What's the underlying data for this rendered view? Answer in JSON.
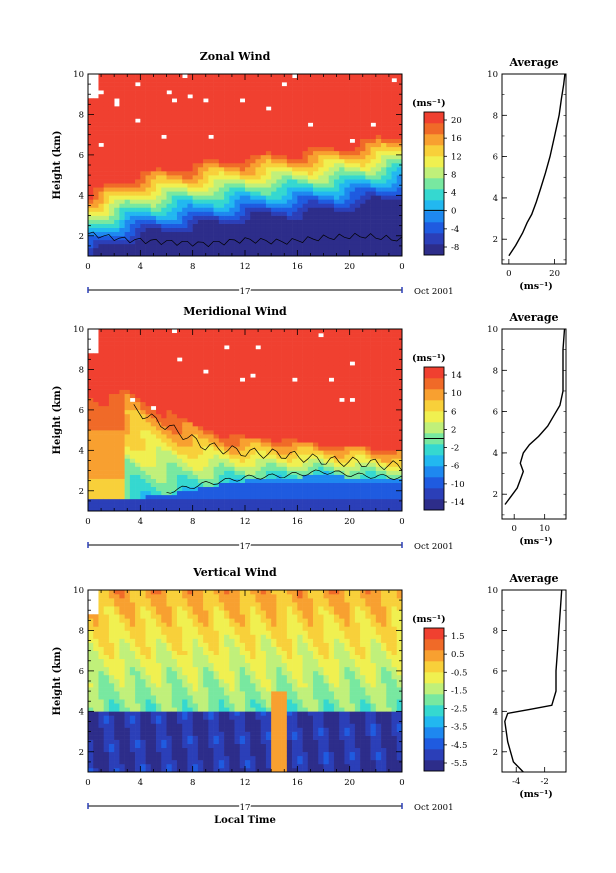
{
  "chart_data": [
    {
      "type": "heatmap",
      "title": "Zonal Wind",
      "ylabel": "Height (km)",
      "xticks": [
        "0",
        "4",
        "8",
        "12",
        "16",
        "20",
        "0"
      ],
      "date_day": "17",
      "date_label": "Oct 2001",
      "xlabel": "",
      "yticks": [
        "2",
        "4",
        "6",
        "8",
        "10"
      ],
      "ylim": [
        1,
        10
      ],
      "xlim": [
        0,
        24
      ],
      "colorbar": {
        "unit": "(ms⁻¹)",
        "ticks": [
          "20",
          "16",
          "12",
          "8",
          "4",
          "0",
          "-4",
          "-8"
        ],
        "range": [
          -10,
          22
        ],
        "zero_line": 0
      },
      "profile": {
        "title": "Average",
        "xticks": [
          "0",
          "20"
        ],
        "xlim": [
          -3,
          25
        ],
        "xlabel": "(ms⁻¹)",
        "yticks": [
          "2",
          "4",
          "6",
          "8",
          "10"
        ],
        "points": [
          [
            0,
            1.2
          ],
          [
            3,
            1.7
          ],
          [
            6,
            2.3
          ],
          [
            8,
            2.8
          ],
          [
            10,
            3.2
          ],
          [
            12,
            3.8
          ],
          [
            14,
            4.5
          ],
          [
            16,
            5.2
          ],
          [
            18,
            6.0
          ],
          [
            20,
            7.0
          ],
          [
            22,
            8.0
          ],
          [
            23,
            8.8
          ],
          [
            24,
            9.5
          ],
          [
            24.5,
            10
          ]
        ]
      },
      "field": {
        "base_height": [
          1.0,
          1.8,
          2.2,
          2.5,
          2.8,
          3.0,
          3.2,
          3.5,
          4.0
        ],
        "base_time": [
          0,
          3,
          6,
          9,
          12,
          15,
          18,
          21,
          24
        ],
        "contour_height": [
          2.1,
          1.8,
          1.7,
          1.6,
          1.8,
          1.7,
          1.9,
          2.0,
          1.8
        ]
      }
    },
    {
      "type": "heatmap",
      "title": "Meridional Wind",
      "ylabel": "Height (km)",
      "xticks": [
        "0",
        "4",
        "8",
        "12",
        "16",
        "20",
        "0"
      ],
      "date_day": "17",
      "date_label": "Oct 2001",
      "xlabel": "",
      "yticks": [
        "2",
        "4",
        "6",
        "8",
        "10"
      ],
      "ylim": [
        1,
        10
      ],
      "xlim": [
        0,
        24
      ],
      "colorbar": {
        "unit": "(ms⁻¹)",
        "ticks": [
          "14",
          "10",
          "6",
          "2",
          "-2",
          "-6",
          "-10",
          "-14"
        ],
        "range": [
          -16,
          16
        ],
        "zero_line": 0
      },
      "profile": {
        "title": "Average",
        "xticks": [
          "0",
          "10"
        ],
        "xlim": [
          -4,
          17
        ],
        "xlabel": "(ms⁻¹)",
        "yticks": [
          "2",
          "4",
          "6",
          "8",
          "10"
        ],
        "points": [
          [
            -3,
            1.5
          ],
          [
            -1,
            1.9
          ],
          [
            1,
            2.3
          ],
          [
            2,
            2.7
          ],
          [
            3,
            3.1
          ],
          [
            2,
            3.5
          ],
          [
            3,
            4.0
          ],
          [
            5,
            4.4
          ],
          [
            8,
            4.8
          ],
          [
            11,
            5.3
          ],
          [
            13,
            5.8
          ],
          [
            15,
            6.3
          ],
          [
            16,
            7.0
          ],
          [
            16,
            8.0
          ],
          [
            16,
            9.0
          ],
          [
            16.5,
            10
          ]
        ]
      },
      "field": {
        "high_edge": [
          6.5,
          7.0,
          6.0,
          5.0,
          4.7,
          4.6,
          4.3,
          4.2,
          4.0
        ],
        "base_time": [
          0,
          3,
          6,
          9,
          12,
          15,
          18,
          21,
          24
        ],
        "low_neg": [
          1.5,
          1.6,
          1.8,
          2.2,
          2.5,
          2.6,
          2.8,
          2.6,
          2.5
        ]
      }
    },
    {
      "type": "heatmap",
      "title": "Vertical Wind",
      "ylabel": "Height (km)",
      "xticks": [
        "0",
        "4",
        "8",
        "12",
        "16",
        "20",
        "0"
      ],
      "date_day": "17",
      "date_label": "Oct 2001",
      "xlabel": "Local Time",
      "yticks": [
        "2",
        "4",
        "6",
        "8",
        "10"
      ],
      "ylim": [
        1,
        10
      ],
      "xlim": [
        0,
        24
      ],
      "colorbar": {
        "unit": "(ms⁻¹)",
        "ticks": [
          "1.5",
          "0.5",
          "-0.5",
          "-1.5",
          "-2.5",
          "-3.5",
          "-4.5",
          "-5.5"
        ],
        "range": [
          -6.5,
          2.5
        ],
        "zero_line": null
      },
      "profile": {
        "title": "Average",
        "xticks": [
          "-4",
          "-2"
        ],
        "xlim": [
          -5,
          -0.5
        ],
        "xlabel": "(ms⁻¹)",
        "yticks": [
          "2",
          "4",
          "6",
          "8",
          "10"
        ],
        "points": [
          [
            -3.5,
            1.0
          ],
          [
            -4.2,
            1.5
          ],
          [
            -4.6,
            2.5
          ],
          [
            -4.8,
            3.5
          ],
          [
            -4.6,
            3.9
          ],
          [
            -3.0,
            4.1
          ],
          [
            -1.5,
            4.3
          ],
          [
            -1.2,
            5.0
          ],
          [
            -1.2,
            6.0
          ],
          [
            -1.1,
            7.0
          ],
          [
            -1.0,
            8.0
          ],
          [
            -0.9,
            9.0
          ],
          [
            -0.8,
            10
          ]
        ]
      },
      "field": {
        "boundary": 4.1,
        "up_time": 14.5
      }
    }
  ]
}
